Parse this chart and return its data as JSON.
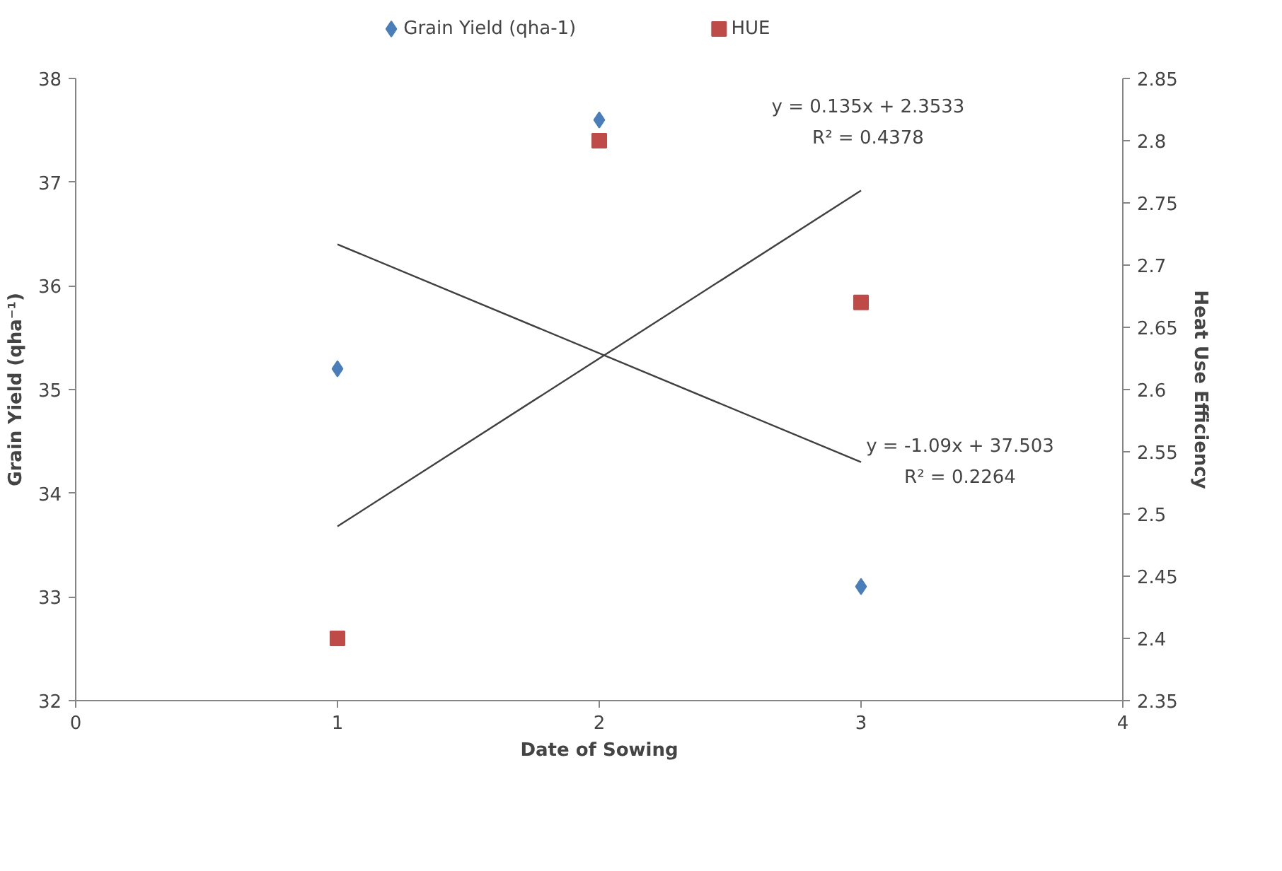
{
  "chart_data": {
    "type": "scatter",
    "xlabel": "Date of Sowing",
    "ylabel": "Grain Yield (qha⁻¹)",
    "y2label": "Heat Use Efficiency",
    "xlim": [
      0,
      4
    ],
    "xticks": [
      0,
      1,
      2,
      3,
      4
    ],
    "ylim": [
      32,
      38
    ],
    "yticks": [
      32,
      33,
      34,
      35,
      36,
      37,
      38
    ],
    "y2lim": [
      2.35,
      2.85
    ],
    "y2ticks": [
      2.35,
      2.4,
      2.45,
      2.5,
      2.55,
      2.6,
      2.65,
      2.7,
      2.75,
      2.8,
      2.85
    ],
    "legend": "top",
    "grid": false,
    "series": [
      {
        "name": "Grain Yield (qha-1)",
        "marker": "diamond",
        "color": "#4a7ebb",
        "x": [
          1,
          2,
          3
        ],
        "values": [
          35.2,
          37.6,
          33.1
        ]
      },
      {
        "name": "HUE",
        "marker": "square",
        "color": "#be4b48",
        "axis": "y2",
        "x": [
          1,
          2,
          3
        ],
        "values": [
          2.4,
          2.8,
          2.67
        ]
      },
      {
        "type": "line",
        "color": "#404040",
        "x": [
          1,
          3
        ],
        "values": [
          36.4,
          34.3
        ]
      },
      {
        "type": "line",
        "color": "#404040",
        "axis": "y2",
        "x": [
          1,
          3
        ],
        "values": [
          2.49,
          2.76
        ]
      }
    ],
    "annotations": [
      "y = 0.135x + 2.3533",
      "R² = 0.4378",
      "y = -1.09x + 37.503",
      "R² = 0.2264"
    ]
  }
}
